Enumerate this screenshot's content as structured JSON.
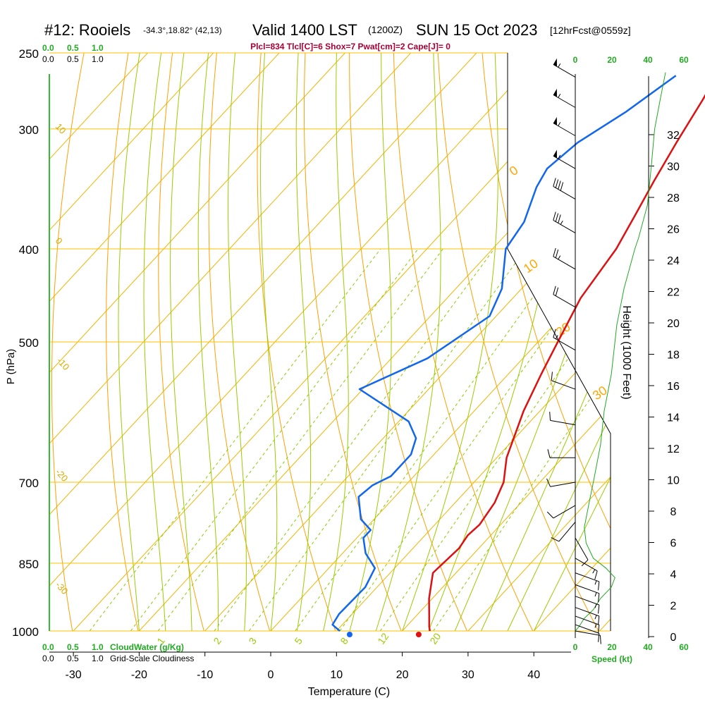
{
  "header": {
    "station": "#12: Rooiels",
    "coords": "-34.3°,18.82° (42,13)",
    "valid": "Valid 1400 LST",
    "utc": "(1200Z)",
    "date": "SUN 15 Oct 2023",
    "forecast": "[12hrFcst@0559z]",
    "params": "Plcl=834 Tlcl[C]=6 Shox=7 Pwat[cm]=2 Cape[J]= 0"
  },
  "labels": {
    "ylabel": "P (hPa)",
    "xlabel": "Temperature (C)",
    "right_axis": "Height (1000 Feet)",
    "cloudwater": "CloudWater (g/Kg)",
    "cloudiness": "Grid-Scale Cloudiness",
    "speed": "Speed (kt)"
  },
  "scale_ticks": {
    "cloud_top": [
      "0.0",
      "0.5",
      "1.0"
    ],
    "cloud_bottom": [
      "0.0",
      "0.5",
      "1.0"
    ],
    "speed_top": [
      "0",
      "20",
      "40",
      "60"
    ],
    "speed_bottom": [
      "0",
      "20",
      "40",
      "60"
    ]
  },
  "colors": {
    "temperature": "#dd1111",
    "dewpoint": "#1166ee",
    "isotherm": "#f0b400",
    "dry_adiabat": "#ff9f00",
    "moist_adiabat": "#99cc00",
    "mixing_ratio": "#88cc00",
    "isobar": "#ffc000",
    "green_label": "#22aa22",
    "params": "#aa0033"
  },
  "isotherm_labels": [
    "10",
    "0",
    "-10",
    "-20",
    "-30"
  ],
  "theta_labels": [
    "0",
    "10",
    "20",
    "30"
  ],
  "mixing_ratio_labels": [
    "1",
    "2",
    "3",
    "5",
    "8",
    "12",
    "20"
  ],
  "chart_data": {
    "type": "line",
    "y_axis": {
      "label": "P (hPa)",
      "ticks": [
        250,
        300,
        400,
        500,
        700,
        850,
        1000
      ]
    },
    "x_axis": {
      "label": "Temperature (C)",
      "ticks": [
        -30,
        -20,
        -10,
        0,
        10,
        20,
        30,
        40
      ]
    },
    "height_axis": {
      "label": "Height (1000 Feet)",
      "ticks": [
        0,
        2,
        4,
        6,
        8,
        10,
        12,
        14,
        16,
        18,
        20,
        22,
        24,
        26,
        28,
        30,
        32
      ]
    },
    "series": [
      {
        "key": "temperature",
        "points": [
          [
            24.2,
            1000
          ],
          [
            23.5,
            990
          ],
          [
            22.0,
            965
          ],
          [
            19.5,
            925
          ],
          [
            16.5,
            870
          ],
          [
            17.0,
            820
          ],
          [
            16.5,
            795
          ],
          [
            16.8,
            775
          ],
          [
            16.0,
            735
          ],
          [
            14.5,
            700
          ],
          [
            11.5,
            660
          ],
          [
            7.5,
            590
          ],
          [
            5.0,
            540
          ],
          [
            3.0,
            500
          ],
          [
            0.3,
            450
          ],
          [
            -1.2,
            400
          ],
          [
            -3.0,
            370
          ],
          [
            -5.0,
            340
          ],
          [
            -7.0,
            310
          ],
          [
            -9.0,
            280
          ],
          [
            -10.5,
            262
          ]
        ]
      },
      {
        "key": "dewpoint",
        "points": [
          [
            10.5,
            1000
          ],
          [
            8.5,
            985
          ],
          [
            8.0,
            960
          ],
          [
            8.2,
            900
          ],
          [
            7.0,
            860
          ],
          [
            3.5,
            830
          ],
          [
            1.0,
            800
          ],
          [
            1.0,
            785
          ],
          [
            -2.0,
            765
          ],
          [
            -5.5,
            725
          ],
          [
            -5.0,
            705
          ],
          [
            -3.5,
            690
          ],
          [
            -3.5,
            655
          ],
          [
            -5.0,
            630
          ],
          [
            -8.5,
            605
          ],
          [
            -20.5,
            560
          ],
          [
            -14.5,
            520
          ],
          [
            -11.0,
            470
          ],
          [
            -13.0,
            440
          ],
          [
            -18.0,
            400
          ],
          [
            -19.0,
            375
          ],
          [
            -22.0,
            345
          ],
          [
            -23.0,
            330
          ],
          [
            -22.0,
            310
          ],
          [
            -19.0,
            288
          ],
          [
            -16.5,
            264
          ]
        ]
      }
    ],
    "surface_points": {
      "temperature": [
        22.5,
        1000
      ],
      "dewpoint": [
        12.0,
        1000
      ]
    },
    "wind_barbs": [
      {
        "pressure": 265,
        "dir": 300,
        "speed": 55
      },
      {
        "pressure": 285,
        "dir": 300,
        "speed": 55
      },
      {
        "pressure": 305,
        "dir": 300,
        "speed": 55
      },
      {
        "pressure": 330,
        "dir": 300,
        "speed": 55
      },
      {
        "pressure": 355,
        "dir": 300,
        "speed": 40
      },
      {
        "pressure": 385,
        "dir": 300,
        "speed": 35
      },
      {
        "pressure": 420,
        "dir": 300,
        "speed": 25
      },
      {
        "pressure": 460,
        "dir": 300,
        "speed": 20
      },
      {
        "pressure": 510,
        "dir": 300,
        "speed": 15
      },
      {
        "pressure": 560,
        "dir": 290,
        "speed": 10
      },
      {
        "pressure": 610,
        "dir": 280,
        "speed": 10
      },
      {
        "pressure": 660,
        "dir": 270,
        "speed": 10
      },
      {
        "pressure": 700,
        "dir": 260,
        "speed": 10
      },
      {
        "pressure": 740,
        "dir": 240,
        "speed": 10
      },
      {
        "pressure": 770,
        "dir": 220,
        "speed": 10
      },
      {
        "pressure": 800,
        "dir": 150,
        "speed": 10
      },
      {
        "pressure": 840,
        "dir": 120,
        "speed": 15
      },
      {
        "pressure": 870,
        "dir": 110,
        "speed": 15
      },
      {
        "pressure": 895,
        "dir": 110,
        "speed": 15
      },
      {
        "pressure": 920,
        "dir": 110,
        "speed": 15
      },
      {
        "pressure": 945,
        "dir": 110,
        "speed": 15
      },
      {
        "pressure": 965,
        "dir": 110,
        "speed": 15
      },
      {
        "pressure": 985,
        "dir": 110,
        "speed": 10
      },
      {
        "pressure": 1000,
        "dir": 100,
        "speed": 10
      }
    ],
    "wind_speed_profile": [
      [
        0,
        1000
      ],
      [
        2,
        990
      ],
      [
        5,
        970
      ],
      [
        10,
        950
      ],
      [
        14,
        925
      ],
      [
        20,
        900
      ],
      [
        22,
        880
      ],
      [
        17,
        860
      ],
      [
        10,
        840
      ],
      [
        6,
        810
      ],
      [
        5,
        780
      ],
      [
        8,
        730
      ],
      [
        10,
        700
      ],
      [
        14,
        640
      ],
      [
        16,
        590
      ],
      [
        20,
        540
      ],
      [
        23,
        480
      ],
      [
        27,
        440
      ],
      [
        33,
        400
      ],
      [
        35,
        390
      ],
      [
        40,
        360
      ],
      [
        42,
        330
      ],
      [
        44,
        300
      ],
      [
        47,
        280
      ],
      [
        50,
        262
      ]
    ]
  }
}
